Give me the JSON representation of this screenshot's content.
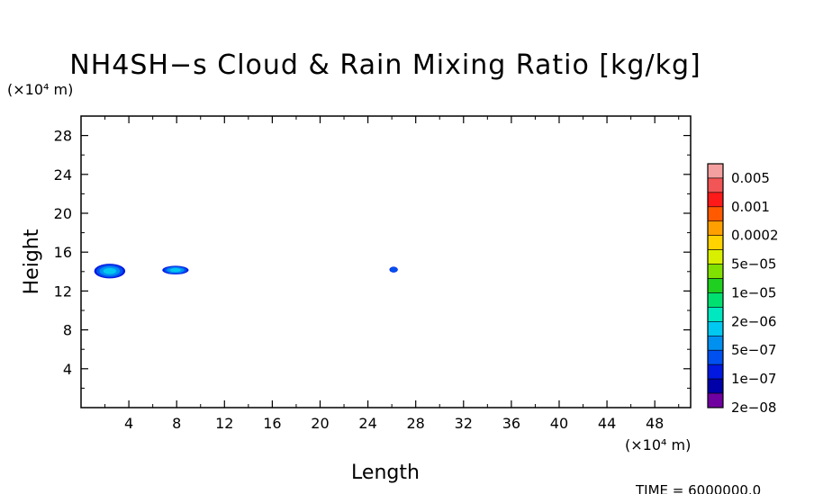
{
  "chart_data": {
    "type": "heatmap",
    "title": "NH4SH−s Cloud & Rain Mixing Ratio [kg/kg]",
    "xlabel": "Length",
    "ylabel": "Height",
    "x_unit": "(×10⁴ m)",
    "y_unit": "(×10⁴ m)",
    "xlim": [
      0,
      51
    ],
    "ylim": [
      0,
      30
    ],
    "x_ticks": [
      4,
      8,
      12,
      16,
      20,
      24,
      28,
      32,
      36,
      40,
      44,
      48
    ],
    "y_ticks": [
      4,
      8,
      12,
      16,
      20,
      24,
      28
    ],
    "x_tick_labels": [
      "4",
      "8",
      "12",
      "16",
      "20",
      "24",
      "28",
      "32",
      "36",
      "40",
      "44",
      "48"
    ],
    "y_tick_labels": [
      "4",
      "8",
      "12",
      "16",
      "20",
      "24",
      "28"
    ],
    "colorbar": {
      "labels": [
        "0.005",
        "0.001",
        "0.0002",
        "5e−05",
        "1e−05",
        "2e−06",
        "5e−07",
        "1e−07",
        "2e−08"
      ],
      "colors": [
        "#f4a0a0",
        "#f25555",
        "#ff1a1a",
        "#ff5a00",
        "#ffa000",
        "#ffd200",
        "#d8f000",
        "#80e000",
        "#20d020",
        "#00e070",
        "#00e8c0",
        "#00c8f0",
        "#0090f0",
        "#0050f0",
        "#0018e0",
        "#0000a8",
        "#7000a0"
      ]
    },
    "cloud_features": [
      {
        "x_range": [
          1.1,
          3.7
        ],
        "y_range": [
          13.3,
          14.8
        ],
        "peak": "5e−07"
      },
      {
        "x_range": [
          6.8,
          9.0
        ],
        "y_range": [
          13.7,
          14.6
        ],
        "peak": "5e−07"
      },
      {
        "x_range": [
          25.8,
          26.5
        ],
        "y_range": [
          13.9,
          14.5
        ],
        "peak": "1e−07"
      }
    ],
    "footer": "TIME = 6000000.0"
  }
}
